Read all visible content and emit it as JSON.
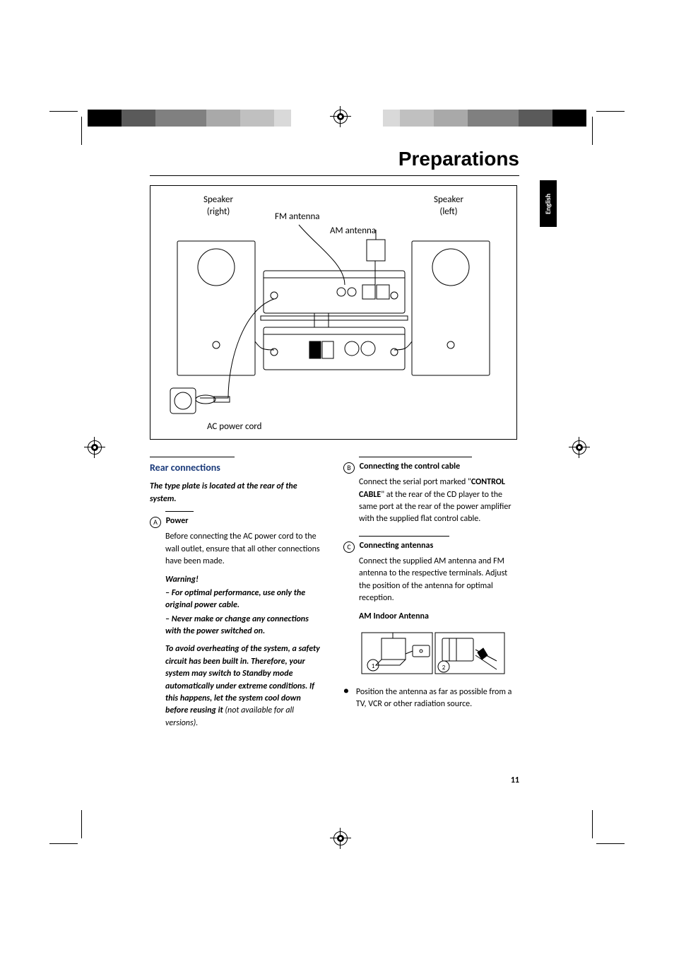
{
  "page": {
    "title": "Preparations",
    "language_tab": "English",
    "page_number": "11"
  },
  "colorbars": {
    "left_colors": [
      "#000000",
      "#000000",
      "#5a5a5a",
      "#5a5a5a",
      "#808080",
      "#808080",
      "#808080",
      "#a9a9a9",
      "#a9a9a9",
      "#c0c0c0",
      "#c0c0c0",
      "#d9d9d9"
    ],
    "right_colors": [
      "#d9d9d9",
      "#c0c0c0",
      "#c0c0c0",
      "#a9a9a9",
      "#a9a9a9",
      "#808080",
      "#808080",
      "#808080",
      "#5a5a5a",
      "#5a5a5a",
      "#000000",
      "#000000"
    ]
  },
  "diagram": {
    "speaker_right": "Speaker\n(right)",
    "speaker_left": "Speaker\n(left)",
    "fm_antenna": "FM antenna",
    "am_antenna": "AM antenna",
    "ac_cord": "AC power cord"
  },
  "left_column": {
    "section_title": "Rear connections",
    "type_plate": "The type plate is located at the rear of the system.",
    "a_label": "A",
    "a_title": "Power",
    "a_body": "Before connecting the AC power cord to the wall outlet, ensure that all other connections have been made.",
    "warning_title": "Warning!",
    "warning_1": "–  For optimal performance, use only the original power cable.",
    "warning_2": "–  Never make or change any connections with the power switched on.",
    "safety_bold": "To avoid overheating of the system, a safety circuit has been built in.  Therefore, your system may switch to Standby mode automatically under extreme conditions. If this happens, let the system cool down before reusing it",
    "safety_tail": " (not available for all versions)."
  },
  "right_column": {
    "b_label": "B",
    "b_title": "Connecting the control cable",
    "b_body_1": "Connect the serial port marked \"",
    "b_body_bold": "CONTROL CABLE",
    "b_body_2": "\" at the rear of the CD player to the same port at the rear of the power amplifier with the supplied flat control cable.",
    "c_label": "C",
    "c_title": "Connecting antennas",
    "c_body": "Connect the supplied AM antenna and FM antenna to the respective terminals. Adjust the position of the antenna for optimal reception.",
    "am_title": "AM Indoor Antenna",
    "bullet": "Position the antenna as far as possible from a TV, VCR or other radiation source."
  }
}
